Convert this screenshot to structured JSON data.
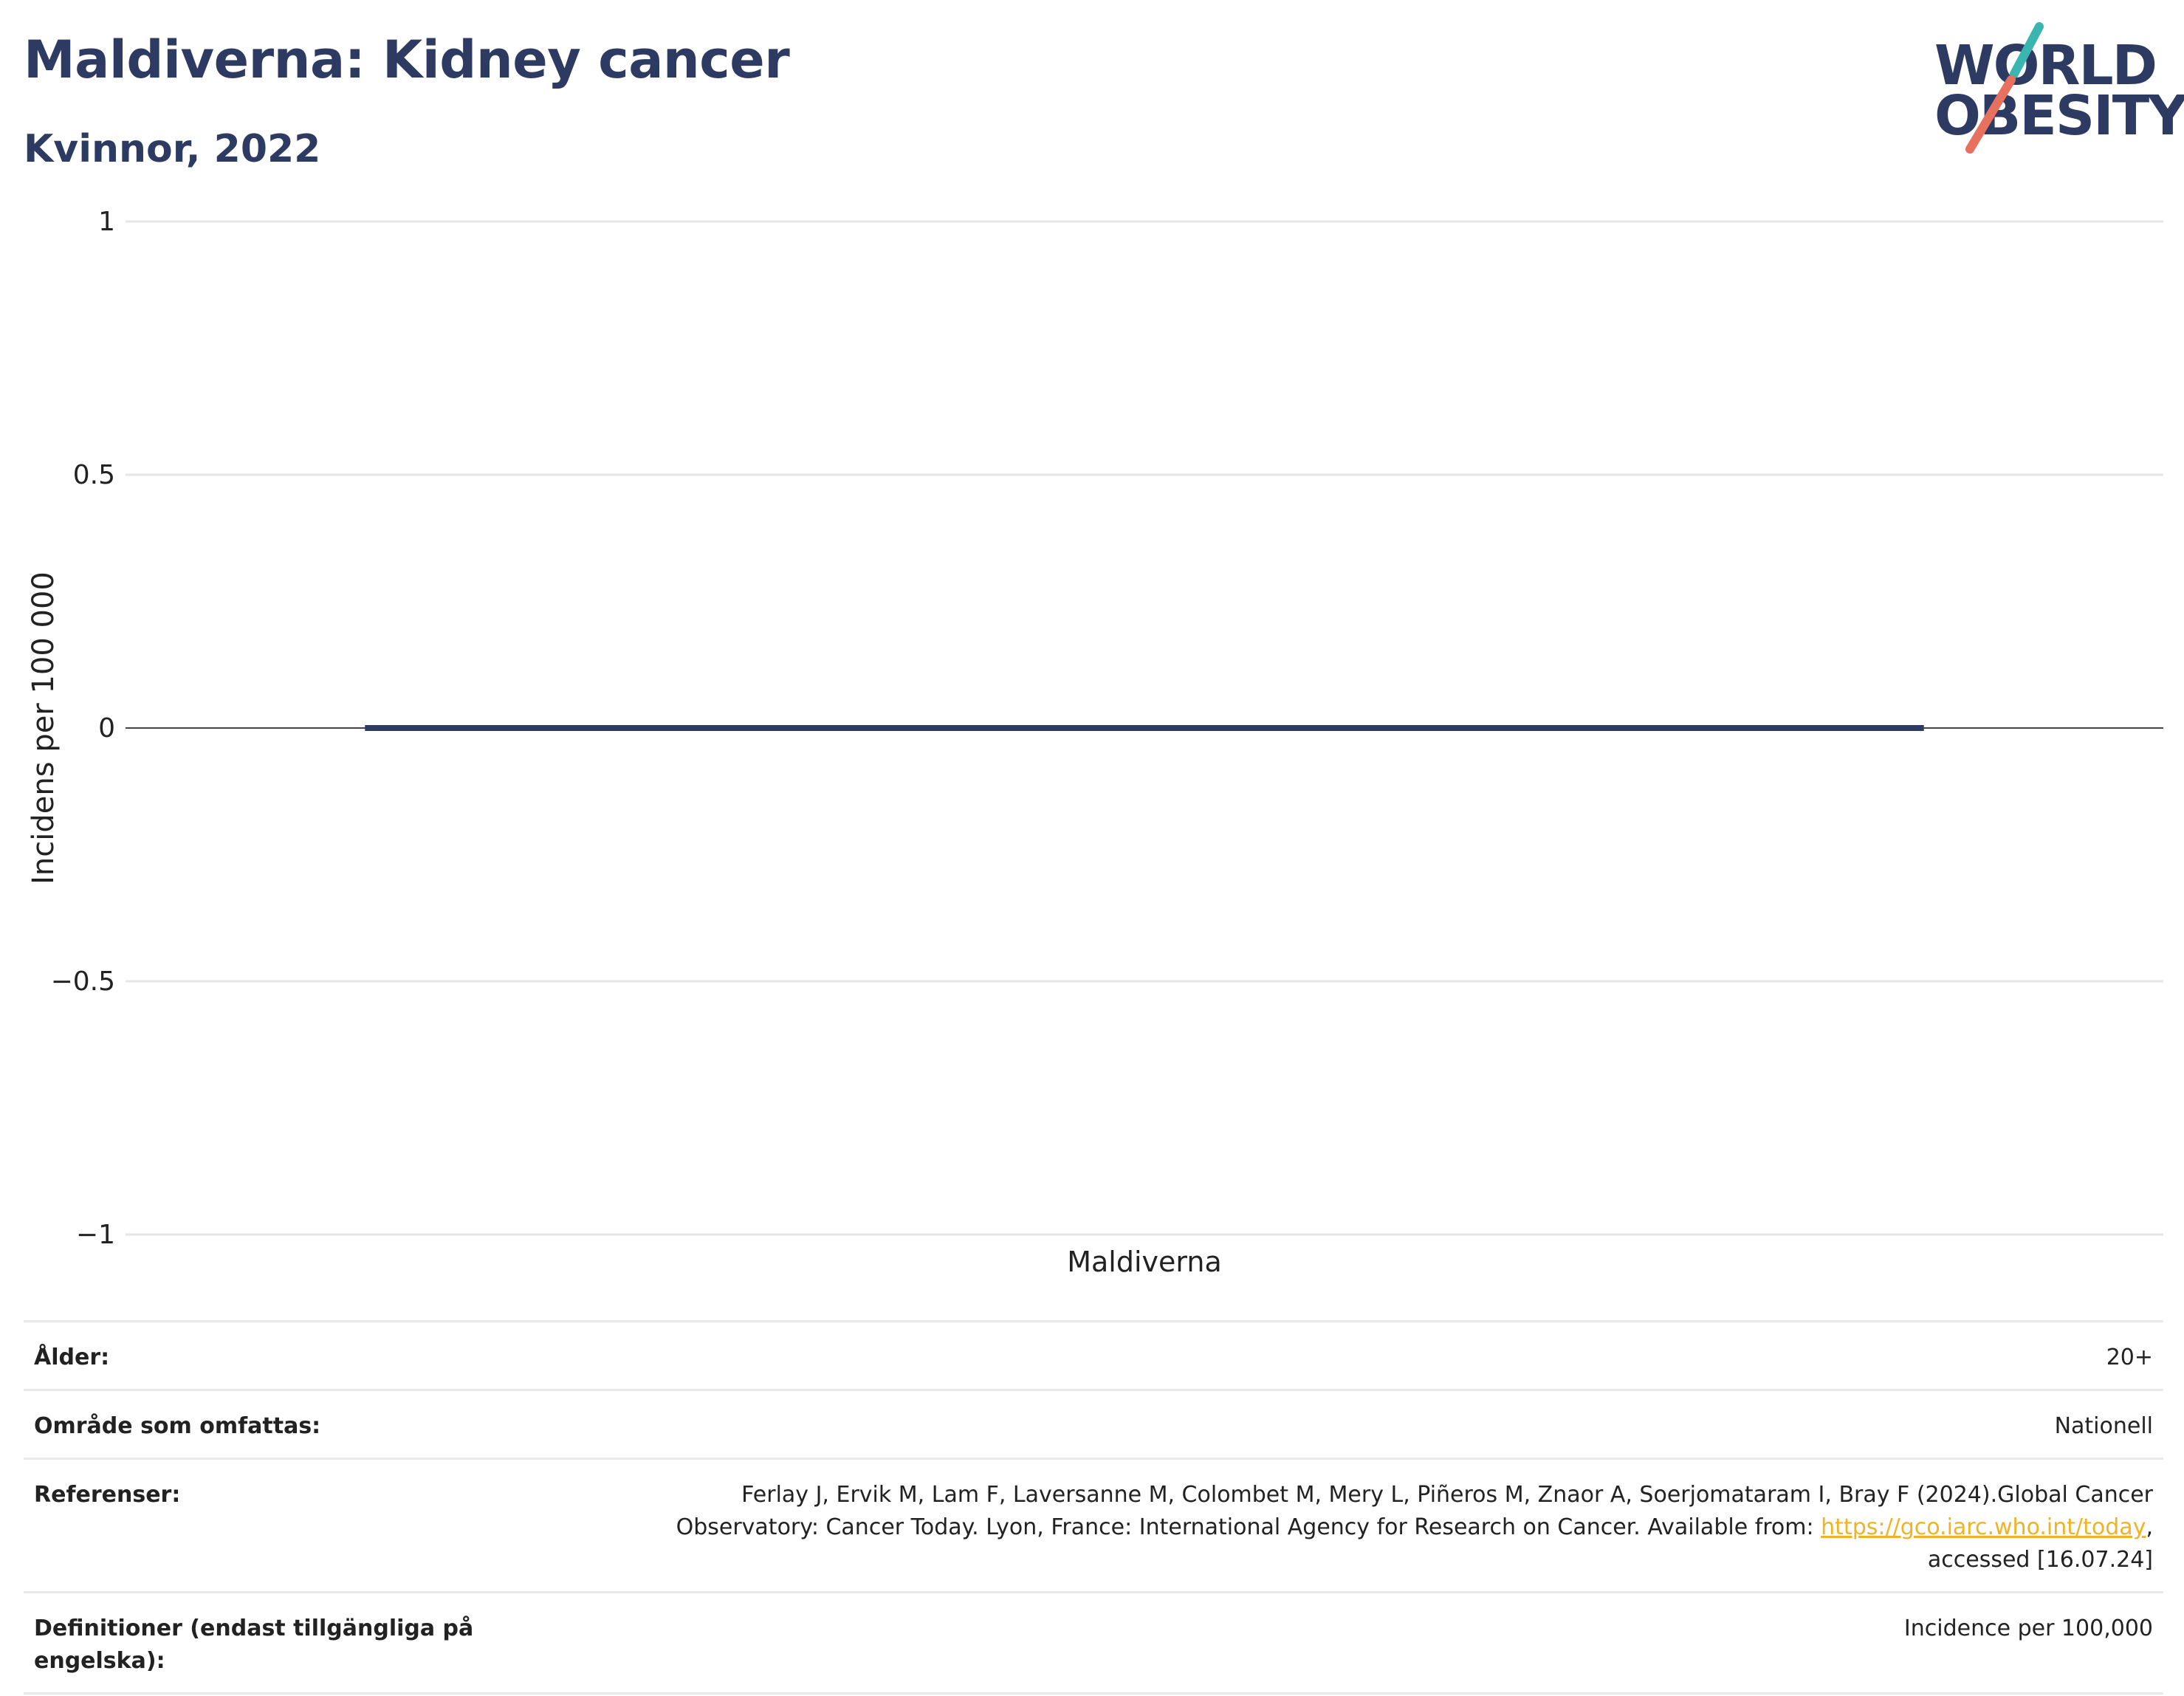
{
  "header": {
    "title": "Maldiverna: Kidney cancer",
    "subtitle": "Kvinnor, 2022"
  },
  "logo": {
    "line1": "WORLD",
    "line2": "OBESITY",
    "accent_teal": "#3ab5b0",
    "accent_coral": "#e8705f"
  },
  "colors": {
    "title": "#2d3a62",
    "bar": "#2d3a62",
    "grid": "#e6e6e6",
    "zero_line": "#444444",
    "link": "#f0b323"
  },
  "chart_data": {
    "type": "bar",
    "categories": [
      "Maldiverna"
    ],
    "values": [
      0
    ],
    "title": "Maldiverna: Kidney cancer",
    "subtitle": "Kvinnor, 2022",
    "xlabel": "",
    "ylabel": "Incidens per 100 000",
    "ylim": [
      -1,
      1
    ],
    "yticks": [
      1,
      0.5,
      0,
      -0.5,
      -1
    ],
    "ytick_labels": [
      "1",
      "0.5",
      "0",
      "−0.5",
      "−1"
    ],
    "grid": true,
    "legend": "none"
  },
  "info": {
    "age_label": "Ålder:",
    "age_value": "20+",
    "area_label": "Område som omfattas:",
    "area_value": "Nationell",
    "ref_label": "Referenser:",
    "ref_line1": "Ferlay J, Ervik M, Lam F, Laversanne M, Colombet M, Mery L, Piñeros M, Znaor A, Soerjomataram I, Bray F (2024).Global Cancer",
    "ref_line2_pre": "Observatory: Cancer Today. Lyon, France: International Agency for Research on Cancer. Available from: ",
    "ref_link": "https://gco.iarc.who.int/today",
    "ref_line2_post": ",",
    "ref_line3": "accessed [16.07.24]",
    "def_label": "Definitioner (endast tillgängliga på engelska):",
    "def_value": "Incidence per 100,000"
  }
}
